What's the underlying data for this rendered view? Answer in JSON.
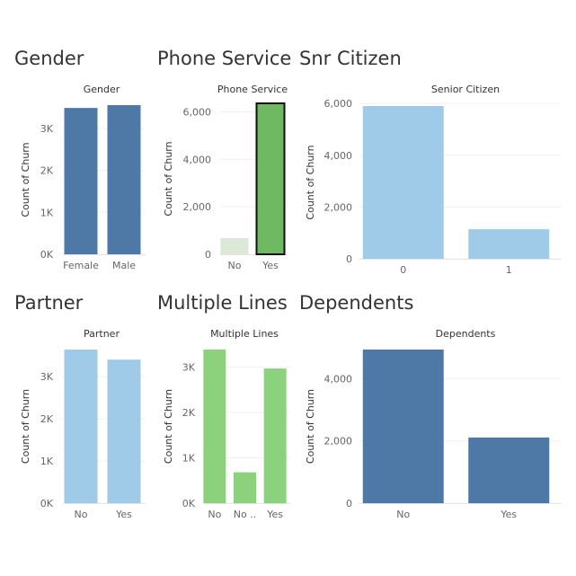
{
  "dashboard": {
    "section_titles": [
      "Gender",
      "Phone Service",
      "Snr Citizen",
      "Partner",
      "Multiple Lines",
      "Dependents"
    ]
  },
  "chart_data": [
    {
      "type": "bar",
      "title": "Gender",
      "ylabel": "Count of Churn",
      "categories": [
        "Female",
        "Male"
      ],
      "values": [
        3488,
        3555
      ],
      "ylim": [
        0,
        3555
      ],
      "yticks": [
        0,
        1000,
        2000,
        3000
      ],
      "ytick_labels": [
        "0K",
        "1K",
        "2K",
        "3K"
      ],
      "colors": [
        "#4e79a7",
        "#4e79a7"
      ],
      "grid": true
    },
    {
      "type": "bar",
      "title": "Phone Service",
      "ylabel": "Count of Churn",
      "categories": [
        "No",
        "Yes"
      ],
      "values": [
        682,
        6361
      ],
      "ylim": [
        0,
        6361
      ],
      "yticks": [
        0,
        2000,
        4000,
        6000
      ],
      "ytick_labels": [
        "0",
        "2,000",
        "4,000",
        "6,000"
      ],
      "colors": [
        "#dce8d8",
        "#6fb963"
      ],
      "selected_category": "Yes",
      "grid": true
    },
    {
      "type": "bar",
      "title": "Senior Citizen",
      "ylabel": "Count of Churn",
      "categories": [
        "0",
        "1"
      ],
      "values": [
        5901,
        1142
      ],
      "ylim": [
        0,
        5901
      ],
      "yticks": [
        0,
        2000,
        4000,
        6000
      ],
      "ytick_labels": [
        "0",
        "2,000",
        "4,000",
        "6,000"
      ],
      "colors": [
        "#a0cbe8",
        "#a0cbe8"
      ],
      "grid": true
    },
    {
      "type": "bar",
      "title": "Partner",
      "ylabel": "Count of Churn",
      "categories": [
        "No",
        "Yes"
      ],
      "values": [
        3641,
        3402
      ],
      "ylim": [
        0,
        3641
      ],
      "yticks": [
        0,
        1000,
        2000,
        3000
      ],
      "ytick_labels": [
        "0K",
        "1K",
        "2K",
        "3K"
      ],
      "colors": [
        "#a0cbe8",
        "#a0cbe8"
      ],
      "grid": true
    },
    {
      "type": "bar",
      "title": "Multiple Lines",
      "ylabel": "Count of Churn",
      "categories": [
        "No",
        "No ..",
        "Yes"
      ],
      "values": [
        3390,
        682,
        2971
      ],
      "ylim": [
        0,
        3390
      ],
      "yticks": [
        0,
        1000,
        2000,
        3000
      ],
      "ytick_labels": [
        "0K",
        "1K",
        "2K",
        "3K"
      ],
      "colors": [
        "#8cd17d",
        "#8cd17d",
        "#8cd17d"
      ],
      "grid": true
    },
    {
      "type": "bar",
      "title": "Dependents",
      "ylabel": "Count of Churn",
      "categories": [
        "No",
        "Yes"
      ],
      "values": [
        4933,
        2110
      ],
      "ylim": [
        0,
        4933
      ],
      "yticks": [
        0,
        2000,
        4000
      ],
      "ytick_labels": [
        "0",
        "2,000",
        "4,000"
      ],
      "colors": [
        "#4e79a7",
        "#4e79a7"
      ],
      "grid": true
    }
  ]
}
